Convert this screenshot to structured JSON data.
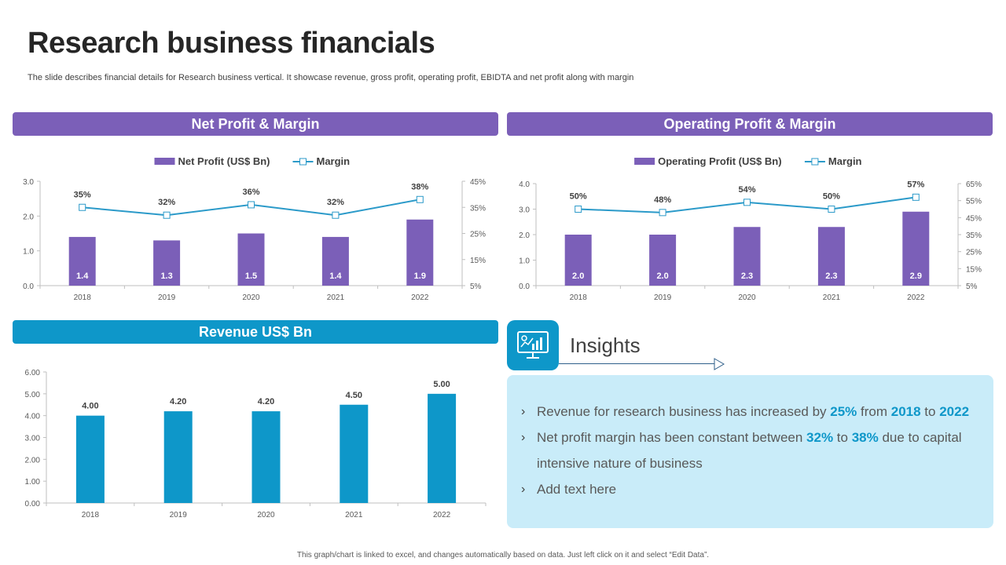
{
  "title": "Research business financials",
  "subtitle": "The slide describes financial details for Research business vertical. It showcase revenue, gross profit, operating profit, EBIDTA and net profit along with margin",
  "sections": {
    "net_profit": "Net Profit & Margin",
    "operating_profit": "Operating Profit & Margin",
    "revenue": "Revenue US$ Bn"
  },
  "colors": {
    "purple": "#7b5fb8",
    "blue": "#0e97c9",
    "line": "#2b9ac9",
    "highlight": "#0e97c9"
  },
  "chart_data": [
    {
      "id": "net",
      "type": "bar+line",
      "title": "Net Profit & Margin",
      "categories": [
        "2018",
        "2019",
        "2020",
        "2021",
        "2022"
      ],
      "series": [
        {
          "name": "Net Profit  (US$ Bn)",
          "type": "bar",
          "axis": "left",
          "values": [
            1.4,
            1.3,
            1.5,
            1.4,
            1.9
          ],
          "labels": [
            "1.4",
            "1.3",
            "1.5",
            "1.4",
            "1.9"
          ]
        },
        {
          "name": "Margin",
          "type": "line",
          "axis": "right",
          "values": [
            35,
            32,
            36,
            32,
            38
          ],
          "labels": [
            "35%",
            "32%",
            "36%",
            "32%",
            "38%"
          ]
        }
      ],
      "ylim_left": [
        0,
        3
      ],
      "yticks_left": [
        "0.0",
        "1.0",
        "2.0",
        "3.0"
      ],
      "ylim_right": [
        5,
        45
      ],
      "yticks_right": [
        "5%",
        "15%",
        "25%",
        "35%",
        "45%"
      ],
      "legend": "top-center"
    },
    {
      "id": "op",
      "type": "bar+line",
      "title": "Operating Profit & Margin",
      "categories": [
        "2018",
        "2019",
        "2020",
        "2021",
        "2022"
      ],
      "series": [
        {
          "name": "Operating Profit  (US$ Bn)",
          "type": "bar",
          "axis": "left",
          "values": [
            2.0,
            2.0,
            2.3,
            2.3,
            2.9
          ],
          "labels": [
            "2.0",
            "2.0",
            "2.3",
            "2.3",
            "2.9"
          ]
        },
        {
          "name": "Margin",
          "type": "line",
          "axis": "right",
          "values": [
            50,
            48,
            54,
            50,
            57
          ],
          "labels": [
            "50%",
            "48%",
            "54%",
            "50%",
            "57%"
          ]
        }
      ],
      "ylim_left": [
        0,
        4
      ],
      "yticks_left": [
        "0.0",
        "1.0",
        "2.0",
        "3.0",
        "4.0"
      ],
      "ylim_right": [
        5,
        65
      ],
      "yticks_right": [
        "5%",
        "15%",
        "25%",
        "35%",
        "45%",
        "55%",
        "65%"
      ],
      "legend": "top-center"
    },
    {
      "id": "rev",
      "type": "bar",
      "title": "Revenue US$ Bn",
      "categories": [
        "2018",
        "2019",
        "2020",
        "2021",
        "2022"
      ],
      "series": [
        {
          "name": "Revenue",
          "type": "bar",
          "axis": "left",
          "values": [
            4.0,
            4.2,
            4.2,
            4.5,
            5.0
          ],
          "labels": [
            "4.00",
            "4.20",
            "4.20",
            "4.50",
            "5.00"
          ]
        }
      ],
      "ylim_left": [
        0,
        6
      ],
      "yticks_left": [
        "0.00",
        "1.00",
        "2.00",
        "3.00",
        "4.00",
        "5.00",
        "6.00"
      ]
    }
  ],
  "insights": {
    "title": "Insights",
    "icon": "chart-monitor-icon",
    "item1": {
      "a": "Revenue for research business has increased by ",
      "b": "25%",
      "c": " from ",
      "d": "2018",
      "e": " to ",
      "f": "2022"
    },
    "item2": {
      "a": "Net profit margin has been constant between ",
      "b": "32%",
      "c": " to ",
      "d": "38%",
      "e": " due to capital intensive nature of business"
    },
    "item3": {
      "a": "Add text here"
    },
    "bullet": "›"
  },
  "footer": "This graph/chart is linked to excel, and changes automatically based on data. Just left click on it and select “Edit Data”."
}
